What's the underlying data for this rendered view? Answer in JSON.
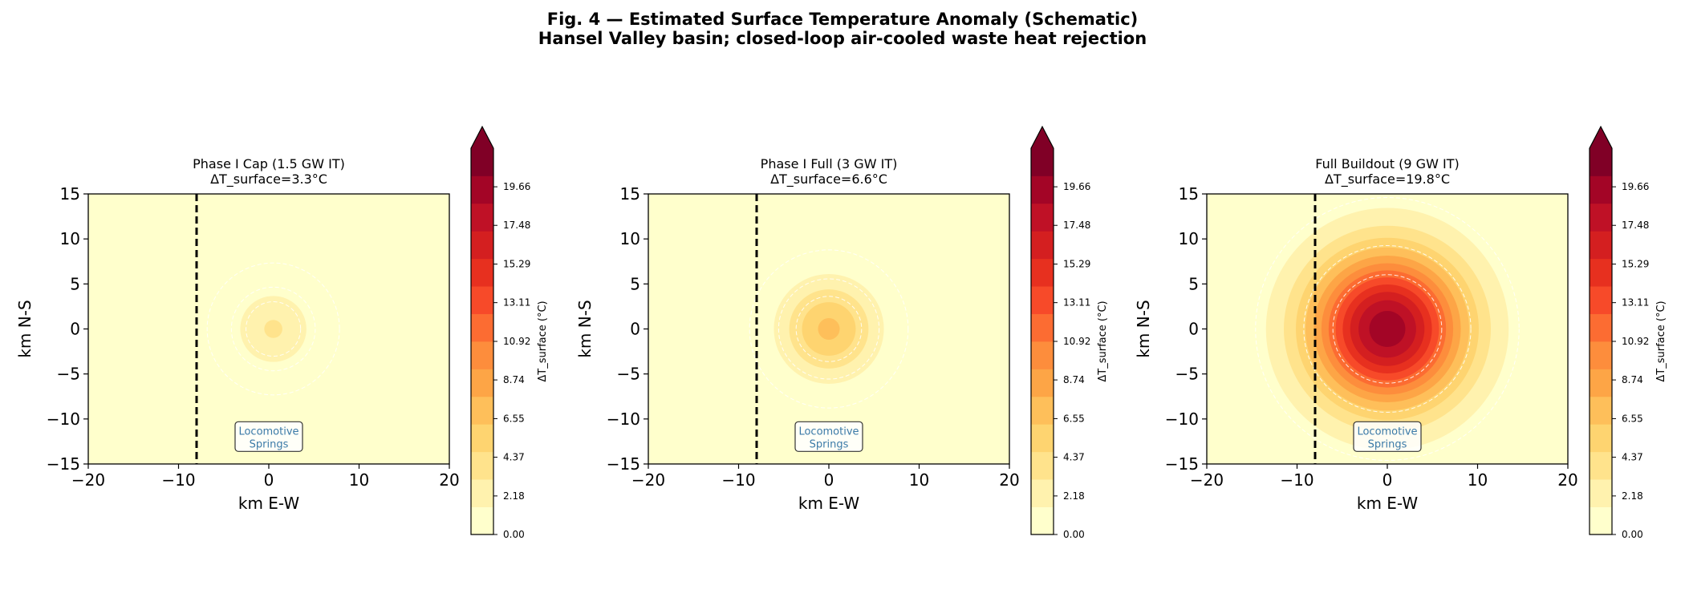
{
  "figure": {
    "title_line1": "Fig. 4 — Estimated Surface Temperature Anomaly (Schematic)",
    "title_line2": "Hansel Valley basin; closed-loop air-cooled waste heat rejection"
  },
  "colors": {
    "background": "#ffffff",
    "boundary_line": "#000000",
    "annotation_text": "#3b7aa8",
    "contour_dashes": "#ffffff",
    "colormap": [
      "#ffffcc",
      "#fff2ae",
      "#ffe38c",
      "#fed470",
      "#febf5a",
      "#fda546",
      "#fd8d3c",
      "#fc6c32",
      "#f74a29",
      "#e7301f",
      "#d41f20",
      "#bf1126",
      "#a30526",
      "#800026"
    ]
  },
  "chart_data": [
    {
      "type": "heatmap",
      "title_line1": "Phase I Cap (1.5 GW IT)",
      "title_line2": "ΔT_surface=3.3°C",
      "xlabel": "km E-W",
      "ylabel": "km N-S",
      "xlim": [
        -20,
        20
      ],
      "ylim": [
        -15,
        15
      ],
      "xticks": [
        -20,
        -10,
        0,
        10,
        20
      ],
      "yticks": [
        15,
        10,
        5,
        0,
        -5,
        -10,
        -15
      ],
      "peak_dT": 3.3,
      "center": [
        0.5,
        0
      ],
      "boundary_x": -8,
      "annotation": {
        "line1": "Locomotive",
        "line2": "Springs",
        "x": 0,
        "y": -12
      },
      "colorbar": {
        "label": "ΔT_surface (°C)",
        "min": 0,
        "max": 21.84,
        "ticks": [
          "0.00",
          "2.18",
          "4.37",
          "6.55",
          "8.74",
          "10.92",
          "13.11",
          "15.29",
          "17.48",
          "19.66"
        ],
        "extend": "max"
      }
    },
    {
      "type": "heatmap",
      "title_line1": "Phase I Full (3 GW IT)",
      "title_line2": "ΔT_surface=6.6°C",
      "xlabel": "km E-W",
      "ylabel": "km N-S",
      "xlim": [
        -20,
        20
      ],
      "ylim": [
        -15,
        15
      ],
      "xticks": [
        -20,
        -10,
        0,
        10,
        20
      ],
      "yticks": [
        15,
        10,
        5,
        0,
        -5,
        -10,
        -15
      ],
      "peak_dT": 6.6,
      "center": [
        0,
        0
      ],
      "boundary_x": -8,
      "annotation": {
        "line1": "Locomotive",
        "line2": "Springs",
        "x": 0,
        "y": -12
      },
      "colorbar": {
        "label": "ΔT_surface (°C)",
        "min": 0,
        "max": 21.84,
        "ticks": [
          "0.00",
          "2.18",
          "4.37",
          "6.55",
          "8.74",
          "10.92",
          "13.11",
          "15.29",
          "17.48",
          "19.66"
        ],
        "extend": "max"
      }
    },
    {
      "type": "heatmap",
      "title_line1": "Full Buildout (9 GW IT)",
      "title_line2": "ΔT_surface=19.8°C",
      "xlabel": "km E-W",
      "ylabel": "km N-S",
      "xlim": [
        -20,
        20
      ],
      "ylim": [
        -15,
        15
      ],
      "xticks": [
        -20,
        -10,
        0,
        10,
        20
      ],
      "yticks": [
        15,
        10,
        5,
        0,
        -5,
        -10,
        -15
      ],
      "peak_dT": 19.8,
      "center": [
        0,
        0
      ],
      "boundary_x": -8,
      "annotation": {
        "line1": "Locomotive",
        "line2": "Springs",
        "x": 0,
        "y": -12
      },
      "colorbar": {
        "label": "ΔT_surface (°C)",
        "min": 0,
        "max": 21.84,
        "ticks": [
          "0.00",
          "2.18",
          "4.37",
          "6.55",
          "8.74",
          "10.92",
          "13.11",
          "15.29",
          "17.48",
          "19.66"
        ],
        "extend": "max"
      }
    }
  ]
}
